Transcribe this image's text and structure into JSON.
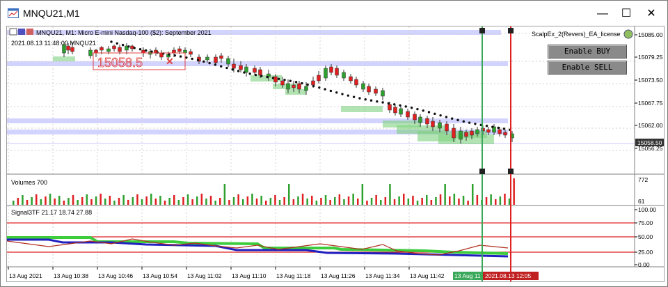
{
  "window": {
    "title": "MNQU21,M1",
    "minimize": "—",
    "maximize": "☐",
    "close": "✕"
  },
  "chart": {
    "header": "MNQU21, M1:  Micro E-mini Nasdaq-100 ($2): September 2021",
    "subheader": "2021.08.13 11:48:00 MNQU21",
    "box_label": "15058.5",
    "ea_label": "ScalpEx_2(Revers)_EA_license",
    "enable_buy": "Enable BUY",
    "enable_sell": "Enable SELL",
    "price_ticks": [
      "15085.00",
      "15079.25",
      "15073.50",
      "15067.75",
      "15062.00",
      "15056.25"
    ],
    "current_price": "15058.50",
    "volumes_label": "Volumes 700",
    "vol_ticks": [
      "772",
      "61"
    ],
    "signal_label": "Signal3TF 21.17 18.74 27.88",
    "sig_ticks": [
      "100.00",
      "75.00",
      "50.00",
      "25.00",
      "0.00"
    ],
    "time_ticks": [
      "13 Aug 2021",
      "13 Aug 10:38",
      "13 Aug 10:46",
      "13 Aug 10:54",
      "13 Aug 11:02",
      "13 Aug 11:10",
      "13 Aug 11:18",
      "13 Aug 11:26",
      "13 Aug 11:34",
      "13 Aug 11:42"
    ],
    "cursor_time_green": "13 Aug 11",
    "cursor_time_red": "2021.08.13 12:05"
  },
  "colors": {
    "up": "#2ea02e",
    "down": "#e02020",
    "band": "#c8c8ff",
    "green_zone": "#7fd07f",
    "red_line": "#e02020",
    "green_line": "#3aa85a"
  }
}
